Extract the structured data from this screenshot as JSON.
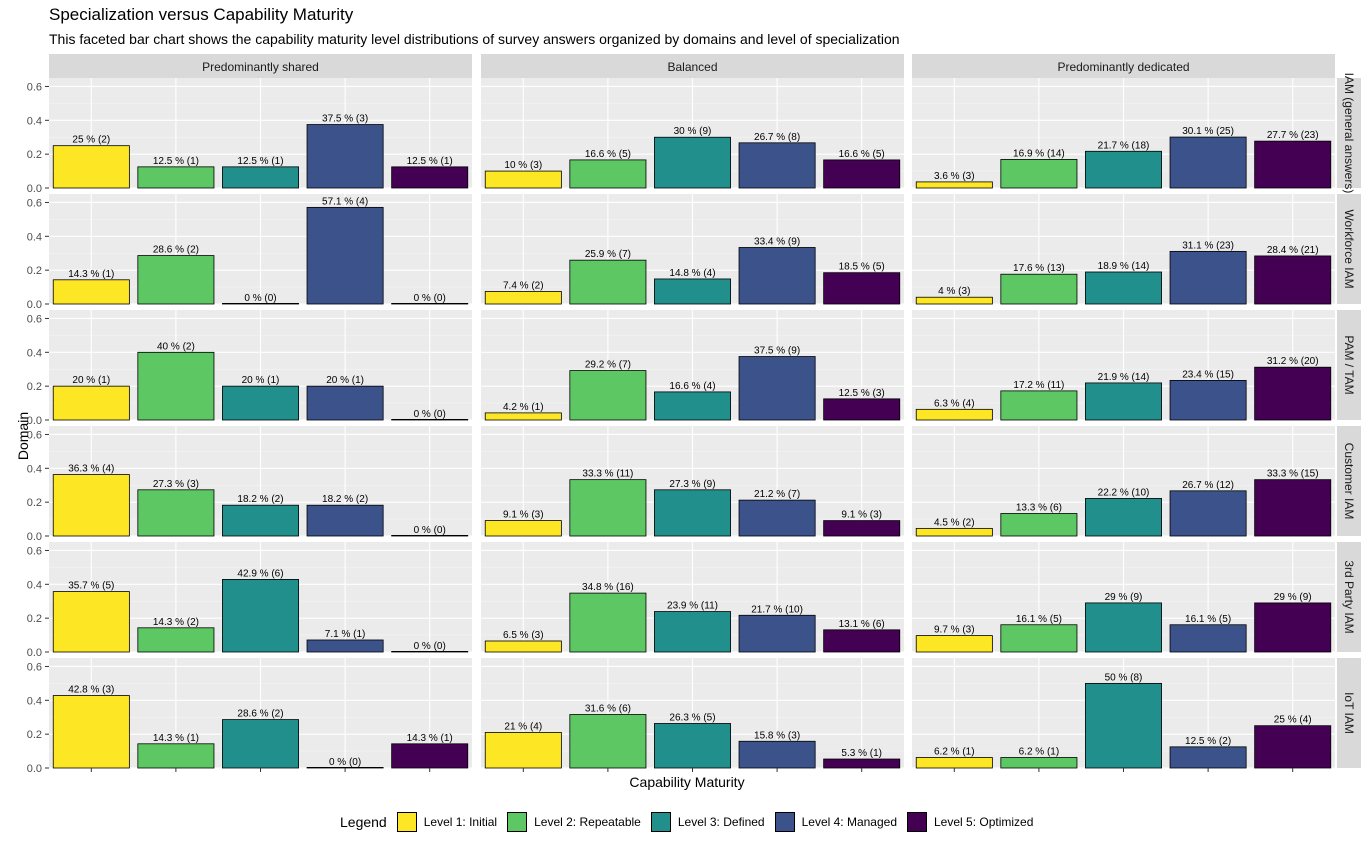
{
  "title": "Specialization versus Capability Maturity",
  "subtitle": "This faceted bar chart shows the capability maturity level distributions of survey answers organized by domains and level of specialization",
  "chart_data": {
    "type": "bar",
    "xlabel": "Capability Maturity",
    "ylabel": "Domain",
    "ylim": [
      0,
      0.6
    ],
    "yticks": [
      "0.0",
      "0.2",
      "0.4",
      "0.6"
    ],
    "ytick_values": [
      0,
      0.2,
      0.4,
      0.6
    ],
    "columns": [
      "Predominantly shared",
      "Balanced",
      "Predominantly dedicated"
    ],
    "rows": [
      "IAM (general answers)",
      "Workforce IAM",
      "PAM / TAM",
      "Customer IAM",
      "3rd Party IAM",
      "IoT IAM"
    ],
    "categories": [
      "Level 1: Initial",
      "Level 2: Repeatable",
      "Level 3: Defined",
      "Level 4: Managed",
      "Level 5: Optimized"
    ],
    "colors": [
      "#FDE725",
      "#5DC863",
      "#21908C",
      "#3B528B",
      "#440154"
    ],
    "legend": {
      "title": "Legend",
      "position": "bottom"
    },
    "grid": true,
    "panels": [
      [
        {
          "values": [
            0.25,
            0.125,
            0.125,
            0.375,
            0.125
          ],
          "labels": [
            "25 % (2)",
            "12.5 % (1)",
            "12.5 % (1)",
            "37.5 % (3)",
            "12.5 % (1)"
          ]
        },
        {
          "values": [
            0.1,
            0.166,
            0.3,
            0.267,
            0.166
          ],
          "labels": [
            "10 % (3)",
            "16.6 % (5)",
            "30 % (9)",
            "26.7 % (8)",
            "16.6 % (5)"
          ]
        },
        {
          "values": [
            0.036,
            0.169,
            0.217,
            0.301,
            0.277
          ],
          "labels": [
            "3.6 % (3)",
            "16.9 % (14)",
            "21.7 % (18)",
            "30.1 % (25)",
            "27.7 % (23)"
          ]
        }
      ],
      [
        {
          "values": [
            0.143,
            0.286,
            0.0,
            0.571,
            0.0
          ],
          "labels": [
            "14.3 % (1)",
            "28.6 % (2)",
            "0 % (0)",
            "57.1 % (4)",
            "0 % (0)"
          ]
        },
        {
          "values": [
            0.074,
            0.259,
            0.148,
            0.334,
            0.185
          ],
          "labels": [
            "7.4 % (2)",
            "25.9 % (7)",
            "14.8 % (4)",
            "33.4 % (9)",
            "18.5 % (5)"
          ]
        },
        {
          "values": [
            0.04,
            0.176,
            0.189,
            0.311,
            0.284
          ],
          "labels": [
            "4 % (3)",
            "17.6 % (13)",
            "18.9 % (14)",
            "31.1 % (23)",
            "28.4 % (21)"
          ]
        }
      ],
      [
        {
          "values": [
            0.2,
            0.4,
            0.2,
            0.2,
            0.0
          ],
          "labels": [
            "20 % (1)",
            "40 % (2)",
            "20 % (1)",
            "20 % (1)",
            "0 % (0)"
          ]
        },
        {
          "values": [
            0.042,
            0.292,
            0.166,
            0.375,
            0.125
          ],
          "labels": [
            "4.2 % (1)",
            "29.2 % (7)",
            "16.6 % (4)",
            "37.5 % (9)",
            "12.5 % (3)"
          ]
        },
        {
          "values": [
            0.063,
            0.172,
            0.219,
            0.234,
            0.312
          ],
          "labels": [
            "6.3 % (4)",
            "17.2 % (11)",
            "21.9 % (14)",
            "23.4 % (15)",
            "31.2 % (20)"
          ]
        }
      ],
      [
        {
          "values": [
            0.363,
            0.273,
            0.182,
            0.182,
            0.0
          ],
          "labels": [
            "36.3 % (4)",
            "27.3 % (3)",
            "18.2 % (2)",
            "18.2 % (2)",
            "0 % (0)"
          ]
        },
        {
          "values": [
            0.091,
            0.333,
            0.273,
            0.212,
            0.091
          ],
          "labels": [
            "9.1 % (3)",
            "33.3 % (11)",
            "27.3 % (9)",
            "21.2 % (7)",
            "9.1 % (3)"
          ]
        },
        {
          "values": [
            0.045,
            0.133,
            0.222,
            0.267,
            0.333
          ],
          "labels": [
            "4.5 % (2)",
            "13.3 % (6)",
            "22.2 % (10)",
            "26.7 % (12)",
            "33.3 % (15)"
          ]
        }
      ],
      [
        {
          "values": [
            0.357,
            0.143,
            0.429,
            0.071,
            0.0
          ],
          "labels": [
            "35.7 % (5)",
            "14.3 % (2)",
            "42.9 % (6)",
            "7.1 % (1)",
            "0 % (0)"
          ]
        },
        {
          "values": [
            0.065,
            0.348,
            0.239,
            0.217,
            0.131
          ],
          "labels": [
            "6.5 % (3)",
            "34.8 % (16)",
            "23.9 % (11)",
            "21.7 % (10)",
            "13.1 % (6)"
          ]
        },
        {
          "values": [
            0.097,
            0.161,
            0.29,
            0.161,
            0.29
          ],
          "labels": [
            "9.7 % (3)",
            "16.1 % (5)",
            "29 % (9)",
            "16.1 % (5)",
            "29 % (9)"
          ]
        }
      ],
      [
        {
          "values": [
            0.428,
            0.143,
            0.286,
            0.0,
            0.143
          ],
          "labels": [
            "42.8 % (3)",
            "14.3 % (1)",
            "28.6 % (2)",
            "0 % (0)",
            "14.3 % (1)"
          ]
        },
        {
          "values": [
            0.21,
            0.316,
            0.263,
            0.158,
            0.053
          ],
          "labels": [
            "21 % (4)",
            "31.6 % (6)",
            "26.3 % (5)",
            "15.8 % (3)",
            "5.3 % (1)"
          ]
        },
        {
          "values": [
            0.062,
            0.062,
            0.5,
            0.125,
            0.25
          ],
          "labels": [
            "6.2 % (1)",
            "6.2 % (1)",
            "50 % (8)",
            "12.5 % (2)",
            "25 % (4)"
          ]
        }
      ]
    ]
  }
}
